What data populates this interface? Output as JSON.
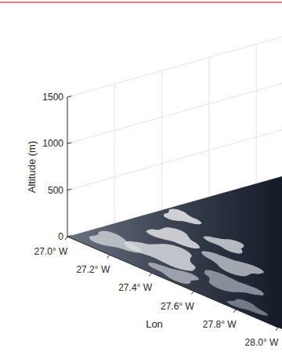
{
  "chart_data": {
    "type": "surface3d",
    "zlabel": "Altitude (m)",
    "zlim": [
      0,
      1500
    ],
    "zticks": [
      0,
      500,
      1000,
      1500
    ],
    "xlabel": "Lon",
    "xlim": [
      -27.0,
      -28.0
    ],
    "xticks": [
      {
        "value": -27.0,
        "label": "27.0° W"
      },
      {
        "value": -27.2,
        "label": "27.2° W"
      },
      {
        "value": -27.4,
        "label": "27.4° W"
      },
      {
        "value": -27.6,
        "label": "27.6° W"
      },
      {
        "value": -27.8,
        "label": "27.8° W"
      },
      {
        "value": -28.0,
        "label": "28.0° W"
      }
    ],
    "grid": true
  }
}
